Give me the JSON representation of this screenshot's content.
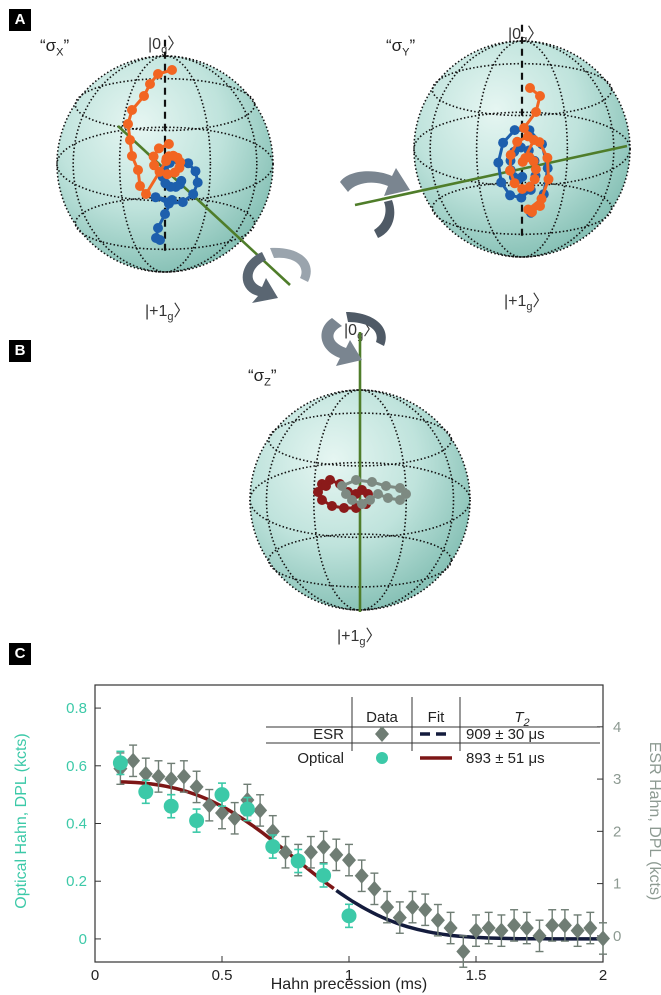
{
  "colors": {
    "sphere": "#bfe3dc",
    "sphere_dark": "#8fc8be",
    "axis_green": "#4f7d2a",
    "orange": "#f26522",
    "blue": "#1d5fad",
    "dark_red": "#8b1a1a",
    "gray": "#7d8a82",
    "teal": "#3cc9a8",
    "gray_diamond": "#6f7d74",
    "fit_red": "#7d1616",
    "fit_navy": "#141c3d"
  },
  "panels": {
    "a": {
      "tag": "A",
      "op_left": "“σ",
      "op_left_sub": "X",
      "op_left_close": "”",
      "op_right": "“σ",
      "op_right_sub": "Y",
      "op_right_close": "”",
      "ket_top_left_pre": "|0",
      "ket_top_left_sub": "g",
      "ket_top_left_post": "〉",
      "ket_top_right_pre": "|0",
      "ket_top_right_sub": "g",
      "ket_top_right_post": "〉",
      "ket_bot_left_pre": "|+1",
      "ket_bot_left_sub": "g",
      "ket_bot_left_post": "〉",
      "ket_bot_right_pre": "|+1",
      "ket_bot_right_sub": "g",
      "ket_bot_right_post": "〉"
    },
    "b": {
      "tag": "B",
      "op": "“σ",
      "op_sub": "Z",
      "op_close": "”",
      "ket_top_pre": "|0",
      "ket_top_sub": "g",
      "ket_top_post": "〉",
      "ket_bot_pre": "|+1",
      "ket_bot_sub": "g",
      "ket_bot_post": "〉"
    },
    "c": {
      "tag": "C"
    }
  },
  "chart_data": {
    "type": "scatter",
    "xlabel": "Hahn precession (ms)",
    "ylabel_left": "Optical Hahn, DPL (kcts)",
    "ylabel_right": "ESR Hahn, DPL (kcts)",
    "xlim": [
      0,
      2
    ],
    "ylim_left": [
      -0.08,
      0.88
    ],
    "ylim_right": [
      -0.5,
      4.8
    ],
    "x_ticks": [
      "0",
      "0.5",
      "1",
      "1.5",
      "2"
    ],
    "y_left_ticks": [
      "0",
      "0.2",
      "0.4",
      "0.6",
      "0.8"
    ],
    "y_right_ticks": [
      "0",
      "1",
      "2",
      "3",
      "4"
    ],
    "legend": {
      "header_data": "Data",
      "header_fit": "Fit",
      "header_t2": "T",
      "header_t2_sub": "2",
      "rows": [
        {
          "label": "ESR",
          "t2": "909 ± 30 μs"
        },
        {
          "label": "Optical",
          "t2": "893 ± 51 μs"
        }
      ]
    },
    "series": [
      {
        "name": "Optical",
        "axis": "left",
        "points": [
          [
            0.1,
            0.61,
            0.04
          ],
          [
            0.2,
            0.51,
            0.04
          ],
          [
            0.3,
            0.46,
            0.04
          ],
          [
            0.4,
            0.41,
            0.04
          ],
          [
            0.5,
            0.5,
            0.04
          ],
          [
            0.6,
            0.45,
            0.04
          ],
          [
            0.7,
            0.32,
            0.04
          ],
          [
            0.8,
            0.27,
            0.04
          ],
          [
            0.9,
            0.22,
            0.04
          ],
          [
            1.0,
            0.08,
            0.04
          ]
        ]
      },
      {
        "name": "ESR",
        "axis": "right",
        "points": [
          [
            0.1,
            3.2,
            0.3
          ],
          [
            0.15,
            3.35,
            0.3
          ],
          [
            0.2,
            3.1,
            0.3
          ],
          [
            0.25,
            3.05,
            0.3
          ],
          [
            0.3,
            3.0,
            0.3
          ],
          [
            0.35,
            3.05,
            0.3
          ],
          [
            0.4,
            2.85,
            0.3
          ],
          [
            0.45,
            2.5,
            0.3
          ],
          [
            0.5,
            2.35,
            0.3
          ],
          [
            0.55,
            2.25,
            0.3
          ],
          [
            0.6,
            2.6,
            0.3
          ],
          [
            0.65,
            2.4,
            0.3
          ],
          [
            0.7,
            2.0,
            0.3
          ],
          [
            0.75,
            1.6,
            0.3
          ],
          [
            0.8,
            1.45,
            0.3
          ],
          [
            0.85,
            1.6,
            0.3
          ],
          [
            0.9,
            1.7,
            0.3
          ],
          [
            0.95,
            1.55,
            0.3
          ],
          [
            1.0,
            1.45,
            0.3
          ],
          [
            1.05,
            1.15,
            0.3
          ],
          [
            1.1,
            0.9,
            0.3
          ],
          [
            1.15,
            0.55,
            0.3
          ],
          [
            1.2,
            0.35,
            0.3
          ],
          [
            1.25,
            0.55,
            0.3
          ],
          [
            1.3,
            0.5,
            0.3
          ],
          [
            1.35,
            0.3,
            0.3
          ],
          [
            1.4,
            0.15,
            0.3
          ],
          [
            1.45,
            -0.3,
            0.3
          ],
          [
            1.5,
            0.1,
            0.3
          ],
          [
            1.55,
            0.15,
            0.3
          ],
          [
            1.6,
            0.1,
            0.3
          ],
          [
            1.65,
            0.2,
            0.3
          ],
          [
            1.7,
            0.15,
            0.3
          ],
          [
            1.75,
            0.0,
            0.3
          ],
          [
            1.8,
            0.2,
            0.3
          ],
          [
            1.85,
            0.2,
            0.3
          ],
          [
            1.9,
            0.1,
            0.3
          ],
          [
            1.95,
            0.15,
            0.3
          ],
          [
            2.0,
            -0.05,
            0.3
          ]
        ]
      }
    ],
    "fit": {
      "amplitude_left": 0.545,
      "t2_ms": 0.9
    }
  }
}
